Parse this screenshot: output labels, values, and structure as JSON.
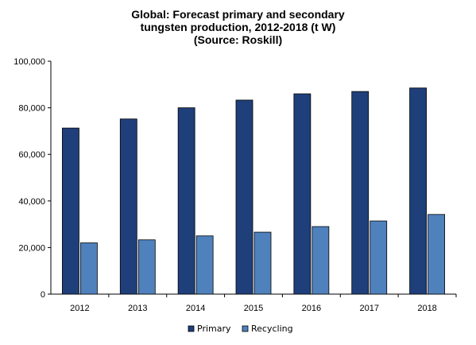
{
  "chart_data": {
    "type": "bar",
    "title_lines": [
      "Global: Forecast primary and secondary",
      "tungsten production, 2012-2018 (t W)",
      "(Source: Roskill)"
    ],
    "categories": [
      "2012",
      "2013",
      "2014",
      "2015",
      "2016",
      "2017",
      "2018"
    ],
    "series": [
      {
        "name": "Primary",
        "color": "#1f3f7a",
        "values": [
          71300,
          75200,
          80000,
          83300,
          86000,
          87000,
          88500
        ]
      },
      {
        "name": "Recycling",
        "color": "#4f81bd",
        "values": [
          22000,
          23300,
          25000,
          26600,
          29000,
          31400,
          34200
        ]
      }
    ],
    "ylim": [
      0,
      100000
    ],
    "yticks": [
      "0",
      "20,000",
      "40,000",
      "60,000",
      "80,000",
      "100,000"
    ],
    "grid": false,
    "legend_position": "bottom"
  }
}
